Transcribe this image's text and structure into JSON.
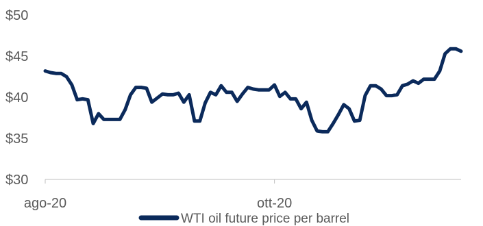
{
  "chart_data": {
    "type": "line",
    "title": "",
    "xlabel": "",
    "ylabel": "",
    "ylim": [
      30,
      50
    ],
    "yticks": [
      30,
      35,
      40,
      45,
      50
    ],
    "ytick_labels": [
      "$30",
      "$35",
      "$40",
      "$45",
      "$50"
    ],
    "xticks": [
      {
        "label": "ago-20",
        "index": 0
      },
      {
        "label": "ott-20",
        "index": 43
      }
    ],
    "grid": false,
    "legend_position": "bottom",
    "series": [
      {
        "name": "WTI oil future price per barrel",
        "color": "#0b2a5b",
        "values": [
          43.2,
          43.0,
          42.9,
          42.9,
          42.5,
          41.5,
          39.7,
          39.8,
          39.7,
          36.8,
          38.0,
          37.3,
          37.3,
          37.3,
          37.3,
          38.5,
          40.3,
          41.2,
          41.2,
          41.1,
          39.4,
          39.9,
          40.4,
          40.3,
          40.3,
          40.5,
          39.4,
          40.3,
          37.1,
          37.1,
          39.3,
          40.6,
          40.3,
          41.4,
          40.6,
          40.6,
          39.5,
          40.4,
          41.2,
          41.0,
          40.9,
          40.9,
          40.9,
          41.5,
          40.1,
          40.6,
          39.8,
          39.8,
          38.6,
          39.4,
          37.2,
          35.9,
          35.8,
          35.8,
          36.8,
          37.9,
          39.1,
          38.6,
          37.1,
          37.2,
          40.2,
          41.4,
          41.4,
          41.0,
          40.2,
          40.2,
          40.3,
          41.4,
          41.6,
          42.0,
          41.7,
          42.2,
          42.2,
          42.2,
          43.2,
          45.3,
          45.9,
          45.9,
          45.6
        ]
      }
    ]
  }
}
